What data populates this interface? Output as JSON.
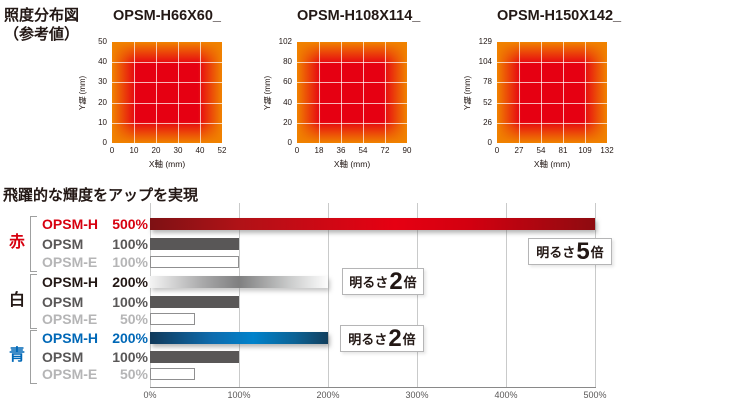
{
  "illuminance": {
    "title_line1": "照度分布図",
    "title_line2": "（参考値）",
    "x_axis_label": "X軸 (mm)",
    "y_axis_label": "Y軸 (mm)",
    "charts": [
      {
        "title": "OPSM-H66X60_",
        "x_ticks": [
          "0",
          "10",
          "20",
          "30",
          "40",
          "52"
        ],
        "y_ticks": [
          "0",
          "10",
          "20",
          "30",
          "40",
          "50"
        ]
      },
      {
        "title": "OPSM-H108X114_",
        "x_ticks": [
          "0",
          "18",
          "36",
          "54",
          "72",
          "90"
        ],
        "y_ticks": [
          "0",
          "20",
          "40",
          "60",
          "80",
          "102"
        ]
      },
      {
        "title": "OPSM-H150X142_",
        "x_ticks": [
          "0",
          "27",
          "54",
          "81",
          "109",
          "132"
        ],
        "y_ticks": [
          "0",
          "26",
          "52",
          "78",
          "104",
          "129"
        ]
      }
    ]
  },
  "brightness": {
    "title": "飛躍的な輝度をアップを実現",
    "axis_ticks": [
      "0%",
      "100%",
      "200%",
      "300%",
      "400%",
      "500%"
    ],
    "groups": [
      {
        "name": "赤",
        "name_color": "#d7000f",
        "rows": [
          {
            "product": "OPSM-H",
            "percent": "500%",
            "value": 500,
            "style": "red",
            "label_color": "#d7000f"
          },
          {
            "product": "OPSM",
            "percent": "100%",
            "value": 100,
            "style": "gray",
            "label_color": "#595757"
          },
          {
            "product": "OPSM-E",
            "percent": "100%",
            "value": 100,
            "style": "outline",
            "label_color": "#b5b5b6"
          }
        ]
      },
      {
        "name": "白",
        "name_color": "#231815",
        "rows": [
          {
            "product": "OPSM-H",
            "percent": "200%",
            "value": 200,
            "style": "silver",
            "label_color": "#231815"
          },
          {
            "product": "OPSM",
            "percent": "100%",
            "value": 100,
            "style": "gray",
            "label_color": "#595757"
          },
          {
            "product": "OPSM-E",
            "percent": "50%",
            "value": 50,
            "style": "outline",
            "label_color": "#b5b5b6"
          }
        ]
      },
      {
        "name": "青",
        "name_color": "#0068b7",
        "rows": [
          {
            "product": "OPSM-H",
            "percent": "200%",
            "value": 200,
            "style": "blue",
            "label_color": "#0068b7"
          },
          {
            "product": "OPSM",
            "percent": "100%",
            "value": 100,
            "style": "gray",
            "label_color": "#595757"
          },
          {
            "product": "OPSM-E",
            "percent": "50%",
            "value": 50,
            "style": "outline",
            "label_color": "#b5b5b6"
          }
        ]
      }
    ],
    "annotations": [
      {
        "prefix": "明るさ",
        "big": "5",
        "suffix": "倍"
      },
      {
        "prefix": "明るさ",
        "big": "2",
        "suffix": "倍"
      },
      {
        "prefix": "明るさ",
        "big": "2",
        "suffix": "倍"
      }
    ]
  },
  "colors": {
    "accent_red": "#d7000f",
    "accent_blue": "#0068b7",
    "dark_gray": "#595757",
    "light_gray": "#b5b5b6",
    "grid_gray": "#c9caca",
    "heat_low": "#f08300",
    "heat_high": "#e60012"
  },
  "chart_data": [
    {
      "type": "heatmap",
      "title": "OPSM-H66X60_",
      "xlabel": "X軸 (mm)",
      "ylabel": "Y軸 (mm)",
      "x_ticks": [
        0,
        10,
        20,
        30,
        40,
        52
      ],
      "y_ticks": [
        0,
        10,
        20,
        30,
        40,
        50
      ],
      "xlim": [
        0,
        52
      ],
      "ylim": [
        0,
        50
      ],
      "grid": true,
      "colors": {
        "center_high": "#e60012",
        "edge_low": "#f08300"
      },
      "description": "照度分布: 中心部が高照度(赤)で周辺に向かい低下(橙)"
    },
    {
      "type": "heatmap",
      "title": "OPSM-H108X114_",
      "xlabel": "X軸 (mm)",
      "ylabel": "Y軸 (mm)",
      "x_ticks": [
        0,
        18,
        36,
        54,
        72,
        90
      ],
      "y_ticks": [
        0,
        20,
        40,
        60,
        80,
        102
      ],
      "xlim": [
        0,
        90
      ],
      "ylim": [
        0,
        102
      ],
      "grid": true,
      "colors": {
        "center_high": "#e60012",
        "edge_low": "#f08300"
      },
      "description": "照度分布: 中心部が高照度(赤)で周辺に向かい低下(橙)"
    },
    {
      "type": "heatmap",
      "title": "OPSM-H150X142_",
      "xlabel": "X軸 (mm)",
      "ylabel": "Y軸 (mm)",
      "x_ticks": [
        0,
        27,
        54,
        81,
        109,
        132
      ],
      "y_ticks": [
        0,
        26,
        52,
        78,
        104,
        129
      ],
      "xlim": [
        0,
        132
      ],
      "ylim": [
        0,
        129
      ],
      "grid": true,
      "colors": {
        "center_high": "#e60012",
        "edge_low": "#f08300"
      },
      "description": "照度分布: 中心部が高照度(赤)で周辺に向かい低下(橙)"
    },
    {
      "type": "bar",
      "orientation": "horizontal",
      "title": "飛躍的な輝度をアップを実現",
      "categories": [
        "赤 OPSM-H",
        "赤 OPSM",
        "赤 OPSM-E",
        "白 OPSM-H",
        "白 OPSM",
        "白 OPSM-E",
        "青 OPSM-H",
        "青 OPSM",
        "青 OPSM-E"
      ],
      "values": [
        500,
        100,
        100,
        200,
        100,
        50,
        200,
        100,
        50
      ],
      "unit": "%",
      "xlim": [
        0,
        500
      ],
      "x_tick_labels": [
        "0%",
        "100%",
        "200%",
        "300%",
        "400%",
        "500%"
      ],
      "grid": true,
      "annotations": [
        "明るさ5倍 (赤 OPSM-H)",
        "明るさ2倍 (白 OPSM-H)",
        "明るさ2倍 (青 OPSM-H)"
      ]
    }
  ]
}
